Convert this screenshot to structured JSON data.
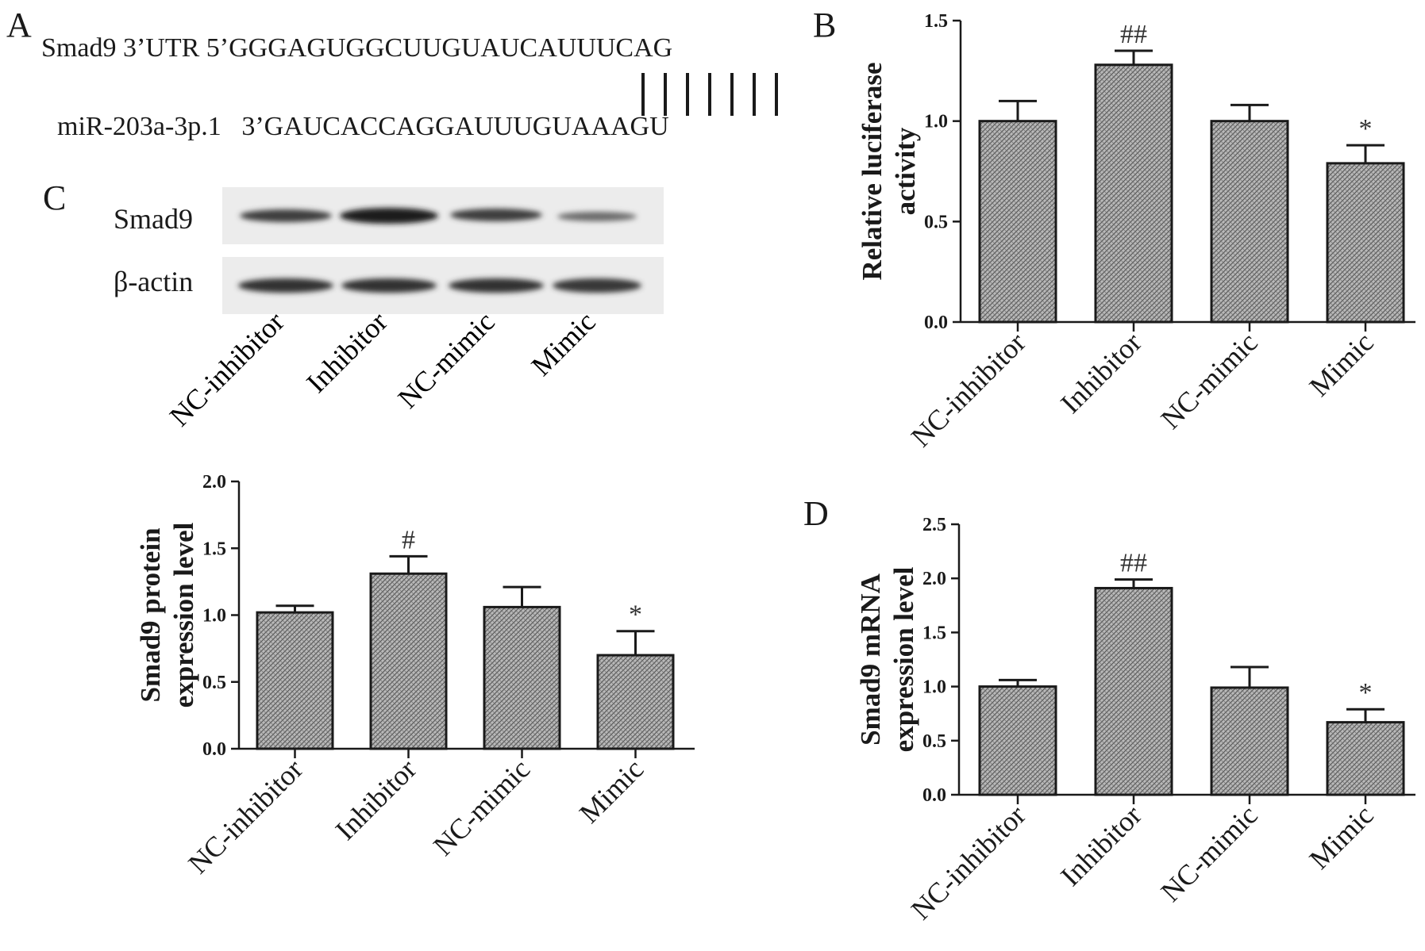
{
  "panels": {
    "A": {
      "letter": "A",
      "target_label": "Smad9 3’UTR",
      "target_seq": "5’GGGAGUGGCUUGUAUCAUUUCAG",
      "mirna_label": "miR-203a-3p.1",
      "mirna_seq": "3’GAUCACCAGGAUUUGUAAAGU"
    },
    "B": {
      "letter": "B"
    },
    "C": {
      "letter": "C",
      "blot_rows": [
        "Smad9",
        "β-actin"
      ],
      "blot_lanes": [
        "NC-inhibitor",
        "Inhibitor",
        "NC-mimic",
        "Mimic"
      ]
    },
    "D": {
      "letter": "D"
    }
  },
  "chart_data": [
    {
      "id": "B",
      "type": "bar",
      "categories": [
        "NC-inhibitor",
        "Inhibitor",
        "NC-mimic",
        "Mimic"
      ],
      "values": [
        1.0,
        1.28,
        1.0,
        0.79
      ],
      "errors": [
        0.1,
        0.07,
        0.08,
        0.09
      ],
      "annotations": [
        "",
        "##",
        "",
        "*"
      ],
      "ylabel": [
        "Relative luciferase",
        "activity"
      ],
      "ylim": [
        0,
        1.5
      ],
      "yticks": [
        "0.0",
        "0.5",
        "1.0",
        "1.5"
      ]
    },
    {
      "id": "C",
      "type": "bar",
      "categories": [
        "NC-inhibitor",
        "Inhibitor",
        "NC-mimic",
        "Mimic"
      ],
      "values": [
        1.02,
        1.31,
        1.06,
        0.7
      ],
      "errors": [
        0.05,
        0.13,
        0.15,
        0.18
      ],
      "annotations": [
        "",
        "#",
        "",
        "*"
      ],
      "ylabel": [
        "Smad9 protein",
        "expression level"
      ],
      "ylim": [
        0,
        2.0
      ],
      "yticks": [
        "0.0",
        "0.5",
        "1.0",
        "1.5",
        "2.0"
      ]
    },
    {
      "id": "D",
      "type": "bar",
      "categories": [
        "NC-inhibitor",
        "Inhibitor",
        "NC-mimic",
        "Mimic"
      ],
      "values": [
        1.0,
        1.91,
        0.99,
        0.67
      ],
      "errors": [
        0.06,
        0.08,
        0.19,
        0.12
      ],
      "annotations": [
        "",
        "##",
        "",
        "*"
      ],
      "ylabel": [
        "Smad9 mRNA",
        "expression level"
      ],
      "ylim": [
        0,
        2.5
      ],
      "yticks": [
        "0.0",
        "0.5",
        "1.0",
        "1.5",
        "2.0",
        "2.5"
      ]
    }
  ]
}
